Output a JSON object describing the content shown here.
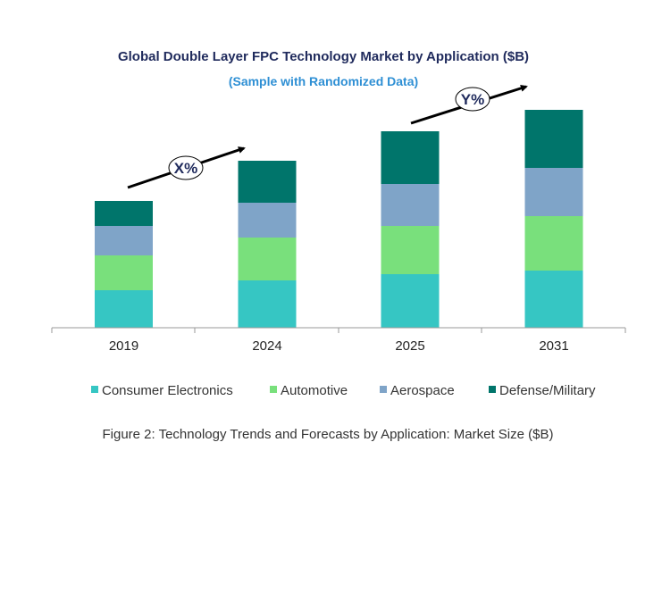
{
  "chart_data": {
    "type": "bar",
    "stacked": true,
    "title": "Global Double Layer FPC Technology Market by Application ($B)",
    "subtitle": "(Sample with Randomized Data)",
    "categories": [
      "2019",
      "2024",
      "2025",
      "2031"
    ],
    "series": [
      {
        "name": "Consumer Electronics",
        "color": "#36c6c3",
        "values": [
          4.2,
          5.3,
          6.0,
          6.4
        ]
      },
      {
        "name": "Automotive",
        "color": "#79e07c",
        "values": [
          3.9,
          4.8,
          5.4,
          6.1
        ]
      },
      {
        "name": "Aerospace",
        "color": "#7fa4c8",
        "values": [
          3.3,
          3.9,
          4.7,
          5.4
        ]
      },
      {
        "name": "Defense/Military",
        "color": "#00756b",
        "values": [
          2.8,
          4.7,
          5.9,
          6.5
        ]
      }
    ],
    "xlabel": "",
    "ylabel": "",
    "y_axis_shown": false,
    "grid": false,
    "legend_position": "bottom",
    "annotations": [
      {
        "label": "X%",
        "from": "2019",
        "to": "2024"
      },
      {
        "label": "Y%",
        "from": "2025",
        "to": "2031"
      }
    ],
    "caption": "Figure 2: Technology  Trends  and Forecasts by Application: Market Size ($B)"
  }
}
